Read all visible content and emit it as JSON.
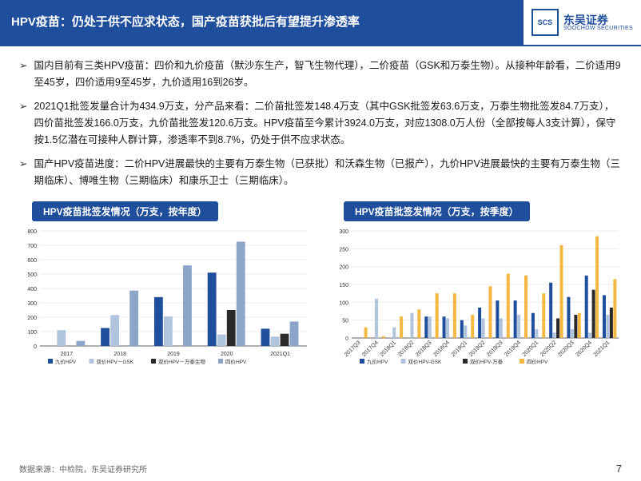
{
  "header": {
    "title": "HPV疫苗：仍处于供不应求状态，国产疫苗获批后有望提升渗透率",
    "logo_cn": "东吴证券",
    "logo_en": "SOOCHOW SECURITIES",
    "logo_badge": "SCS"
  },
  "bullets": [
    "国内目前有三类HPV疫苗：四价和九价疫苗（默沙东生产，智飞生物代理），二价疫苗（GSK和万泰生物）。从接种年龄看，二价适用9至45岁，四价适用9至45岁，九价适用16到26岁。",
    "2021Q1批签发量合计为434.9万支，分产品来看：二价苗批签发148.4万支（其中GSK批签发63.6万支，万泰生物批签发84.7万支），四价苗批签发166.0万支，九价苗批签发120.6万支。HPV疫苗至今累计3924.0万支，对应1308.0万人份（全部按每人3支计算），保守按1.5亿潜在可接种人群计算，渗透率不到8.7%，仍处于供不应求状态。",
    "国产HPV疫苗进度：二价HPV进展最快的主要有万泰生物（已获批）和沃森生物（已报产），九价HPV进展最快的主要有万泰生物（三期临床）、博唯生物（三期临床）和康乐卫士（三期临床）。"
  ],
  "chart_annual": {
    "title": "HPV疫苗批签发情况（万支，按年度）",
    "type": "bar",
    "categories": [
      "2017",
      "2018",
      "2019",
      "2020",
      "2021Q1"
    ],
    "series": [
      {
        "name": "九价HPV",
        "color": "#1e4e9c",
        "values": [
          0,
          125,
          340,
          510,
          120
        ]
      },
      {
        "name": "双价HPV－GSK",
        "color": "#b0c4de",
        "values": [
          110,
          215,
          205,
          80,
          65
        ]
      },
      {
        "name": "双价HPV－万泰生物",
        "color": "#2a2a2a",
        "values": [
          0,
          0,
          0,
          250,
          85
        ]
      },
      {
        "name": "四价HPV",
        "color": "#8ca5c9",
        "values": [
          35,
          385,
          560,
          725,
          170
        ]
      }
    ],
    "ylim": [
      0,
      800
    ],
    "ytick_step": 100,
    "grid_color": "#dddddd",
    "bar_width": 0.18
  },
  "chart_quarterly": {
    "title": "HPV疫苗批签发情况（万支，按季度）",
    "type": "bar",
    "categories": [
      "2017Q3",
      "2017Q4",
      "2018Q1",
      "2018Q2",
      "2018Q3",
      "2018Q4",
      "2019Q1",
      "2019Q2",
      "2019Q3",
      "2019Q4",
      "2020Q1",
      "2020Q2",
      "2020Q3",
      "2020Q4",
      "2021Q1"
    ],
    "series": [
      {
        "name": "九价HPV",
        "color": "#1e4e9c",
        "values": [
          0,
          0,
          0,
          0,
          60,
          60,
          50,
          85,
          105,
          105,
          70,
          155,
          115,
          175,
          120
        ]
      },
      {
        "name": "双价HPV-GSK",
        "color": "#b0c4de",
        "values": [
          0,
          110,
          30,
          70,
          60,
          55,
          35,
          55,
          55,
          65,
          25,
          15,
          25,
          15,
          65
        ]
      },
      {
        "name": "双价HPV-万泰",
        "color": "#2a2a2a",
        "values": [
          0,
          0,
          0,
          0,
          0,
          0,
          0,
          0,
          0,
          0,
          0,
          55,
          65,
          135,
          85
        ]
      },
      {
        "name": "四价HPV",
        "color": "#f5b942",
        "values": [
          30,
          5,
          60,
          80,
          125,
          125,
          65,
          145,
          180,
          175,
          125,
          260,
          70,
          285,
          165
        ]
      }
    ],
    "ylim": [
      0,
      300
    ],
    "ytick_step": 50,
    "grid_color": "#dddddd",
    "bar_width": 0.2
  },
  "footer": {
    "source": "数据来源：中检院，东吴证券研究所",
    "page": "7"
  }
}
